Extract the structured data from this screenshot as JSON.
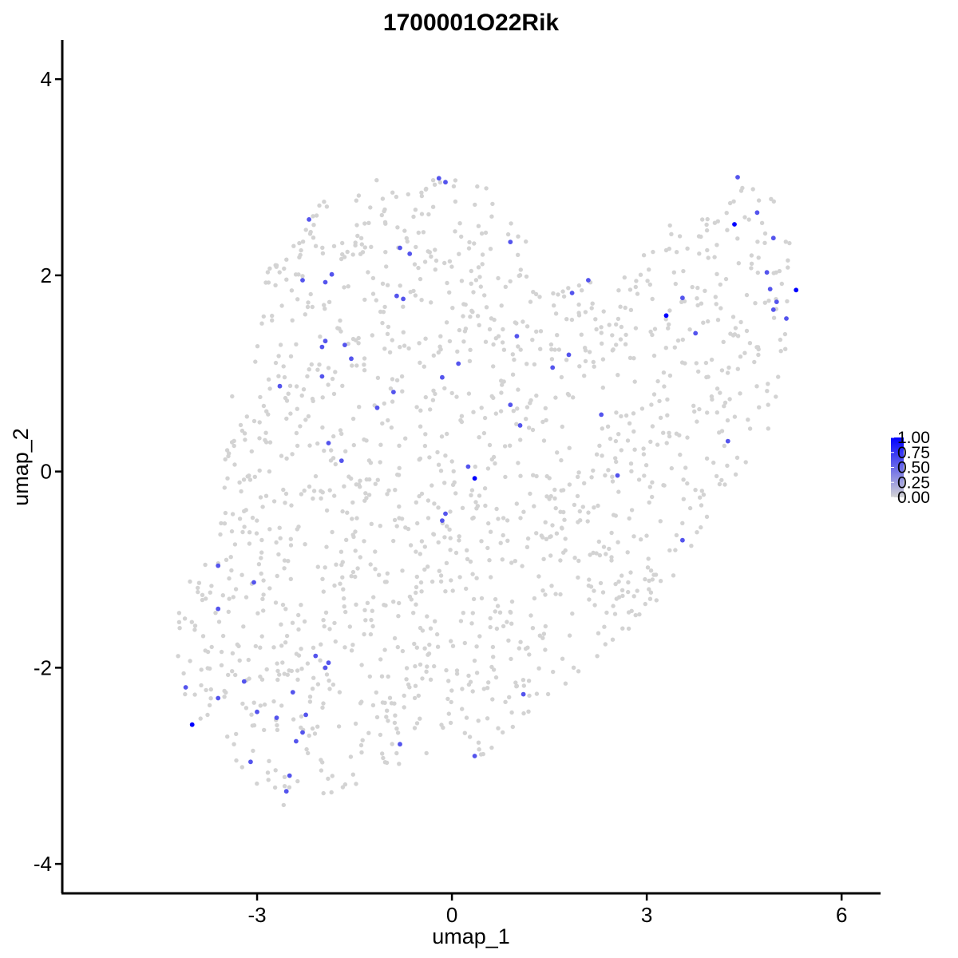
{
  "chart_data": {
    "type": "scatter",
    "title": "1700001O22Rik",
    "xlabel": "umap_1",
    "ylabel": "umap_2",
    "xlim": [
      -6,
      6.6
    ],
    "ylim": [
      -4.3,
      4.4
    ],
    "x_ticks": [
      -3,
      0,
      3,
      6
    ],
    "x_tick_labels": [
      "-3",
      "0",
      "3",
      "6"
    ],
    "y_ticks": [
      -4,
      -2,
      0,
      2,
      4
    ],
    "y_tick_labels": [
      "-4",
      "-2",
      "0",
      "2",
      "4"
    ],
    "grid": false,
    "legend": {
      "placement": "right",
      "type": "colorbar",
      "ticks": [
        1.0,
        0.75,
        0.5,
        0.25,
        0.0
      ],
      "tick_labels": [
        "1.00",
        "0.75",
        "0.50",
        "0.25",
        "0.00"
      ]
    },
    "colors": {
      "low": "#d3d3d3",
      "high": "#0000ff",
      "point_size_value": 0
    },
    "cluster_outline": [
      [
        -4.8,
        -1.3
      ],
      [
        -4.7,
        -1.1
      ],
      [
        -4.3,
        -1.5
      ],
      [
        -4.25,
        -1.9
      ],
      [
        -4.1,
        -2.3
      ],
      [
        -3.7,
        -2.8
      ],
      [
        -3.1,
        -3.2
      ],
      [
        -2.6,
        -3.4
      ],
      [
        -2.3,
        -3.5
      ],
      [
        -2.0,
        -3.3
      ],
      [
        -1.4,
        -3.2
      ],
      [
        -0.9,
        -3.0
      ],
      [
        -0.2,
        -3.0
      ],
      [
        0.5,
        -2.9
      ],
      [
        1.0,
        -2.6
      ],
      [
        1.6,
        -2.3
      ],
      [
        2.0,
        -2.0
      ],
      [
        2.4,
        -1.8
      ],
      [
        2.9,
        -1.5
      ],
      [
        3.3,
        -1.2
      ],
      [
        3.6,
        -0.9
      ],
      [
        4.1,
        -0.4
      ],
      [
        4.6,
        0.0
      ],
      [
        4.9,
        0.4
      ],
      [
        5.1,
        1.0
      ],
      [
        5.2,
        1.5
      ],
      [
        5.2,
        2.0
      ],
      [
        5.3,
        2.5
      ],
      [
        4.9,
        2.8
      ],
      [
        4.4,
        3.0
      ],
      [
        4.2,
        2.6
      ],
      [
        3.8,
        2.6
      ],
      [
        3.4,
        2.6
      ],
      [
        2.9,
        2.4
      ],
      [
        2.6,
        2.2
      ],
      [
        2.0,
        2.0
      ],
      [
        1.4,
        1.8
      ],
      [
        1.3,
        2.2
      ],
      [
        1.0,
        2.7
      ],
      [
        0.6,
        2.9
      ],
      [
        0.2,
        3.0
      ],
      [
        -0.3,
        3.1
      ],
      [
        -1.0,
        3.0
      ],
      [
        -1.6,
        2.9
      ],
      [
        -2.1,
        2.7
      ],
      [
        -2.3,
        2.4
      ],
      [
        -2.6,
        2.2
      ],
      [
        -3.0,
        2.0
      ],
      [
        -3.0,
        1.6
      ],
      [
        -3.2,
        1.2
      ],
      [
        -3.4,
        0.8
      ],
      [
        -3.5,
        0.3
      ],
      [
        -3.6,
        -0.2
      ],
      [
        -3.7,
        -0.7
      ],
      [
        -3.9,
        -1.0
      ],
      [
        -4.3,
        -1.2
      ]
    ],
    "background_cell_count": 1500,
    "expressing_cells": [
      {
        "x": -0.2,
        "y": 2.99,
        "v": 0.6
      },
      {
        "x": -0.1,
        "y": 2.95,
        "v": 0.6
      },
      {
        "x": -2.2,
        "y": 2.57,
        "v": 0.6
      },
      {
        "x": 0.9,
        "y": 2.34,
        "v": 0.6
      },
      {
        "x": -0.8,
        "y": 2.28,
        "v": 0.6
      },
      {
        "x": -0.65,
        "y": 2.22,
        "v": 0.6
      },
      {
        "x": -2.3,
        "y": 1.95,
        "v": 0.6
      },
      {
        "x": -1.95,
        "y": 1.93,
        "v": 0.6
      },
      {
        "x": -1.85,
        "y": 2.01,
        "v": 0.6
      },
      {
        "x": -0.85,
        "y": 1.79,
        "v": 0.6
      },
      {
        "x": -0.75,
        "y": 1.76,
        "v": 0.6
      },
      {
        "x": -1.95,
        "y": 1.33,
        "v": 0.6
      },
      {
        "x": -2.0,
        "y": 1.27,
        "v": 0.6
      },
      {
        "x": -1.65,
        "y": 1.29,
        "v": 0.6
      },
      {
        "x": -1.55,
        "y": 1.15,
        "v": 0.6
      },
      {
        "x": -2.0,
        "y": 0.97,
        "v": 0.6
      },
      {
        "x": -0.15,
        "y": 0.96,
        "v": 0.6
      },
      {
        "x": 0.1,
        "y": 1.1,
        "v": 0.6
      },
      {
        "x": -2.65,
        "y": 0.87,
        "v": 0.6
      },
      {
        "x": -0.9,
        "y": 0.81,
        "v": 0.6
      },
      {
        "x": -1.15,
        "y": 0.65,
        "v": 0.6
      },
      {
        "x": 0.9,
        "y": 0.68,
        "v": 0.6
      },
      {
        "x": 1.05,
        "y": 0.47,
        "v": 0.6
      },
      {
        "x": 1.0,
        "y": 1.38,
        "v": 0.6
      },
      {
        "x": 1.55,
        "y": 1.06,
        "v": 0.6
      },
      {
        "x": 1.8,
        "y": 1.19,
        "v": 0.6
      },
      {
        "x": 1.85,
        "y": 1.82,
        "v": 0.6
      },
      {
        "x": 2.1,
        "y": 1.95,
        "v": 0.6
      },
      {
        "x": 2.3,
        "y": 0.58,
        "v": 0.6
      },
      {
        "x": -1.9,
        "y": 0.29,
        "v": 0.6
      },
      {
        "x": -1.7,
        "y": 0.11,
        "v": 0.6
      },
      {
        "x": 0.25,
        "y": 0.05,
        "v": 0.6
      },
      {
        "x": 0.35,
        "y": -0.07,
        "v": 1.0
      },
      {
        "x": 2.55,
        "y": -0.04,
        "v": 0.6
      },
      {
        "x": -0.1,
        "y": -0.43,
        "v": 0.6
      },
      {
        "x": -0.15,
        "y": -0.5,
        "v": 0.6
      },
      {
        "x": 3.55,
        "y": -0.7,
        "v": 0.6
      },
      {
        "x": -3.6,
        "y": -0.96,
        "v": 0.6
      },
      {
        "x": -3.05,
        "y": -1.13,
        "v": 0.6
      },
      {
        "x": -3.6,
        "y": -1.4,
        "v": 0.6
      },
      {
        "x": -2.1,
        "y": -1.88,
        "v": 0.6
      },
      {
        "x": -1.9,
        "y": -1.95,
        "v": 0.6
      },
      {
        "x": -1.95,
        "y": -2.0,
        "v": 0.6
      },
      {
        "x": -3.2,
        "y": -2.14,
        "v": 0.6
      },
      {
        "x": -4.1,
        "y": -2.2,
        "v": 0.6
      },
      {
        "x": -3.6,
        "y": -2.31,
        "v": 0.6
      },
      {
        "x": -2.45,
        "y": -2.25,
        "v": 0.6
      },
      {
        "x": 1.1,
        "y": -2.27,
        "v": 0.6
      },
      {
        "x": -3.0,
        "y": -2.45,
        "v": 0.6
      },
      {
        "x": -2.7,
        "y": -2.51,
        "v": 0.6
      },
      {
        "x": -2.25,
        "y": -2.48,
        "v": 0.6
      },
      {
        "x": -4.0,
        "y": -2.58,
        "v": 1.0
      },
      {
        "x": -2.3,
        "y": -2.66,
        "v": 0.6
      },
      {
        "x": -2.4,
        "y": -2.75,
        "v": 0.6
      },
      {
        "x": -0.8,
        "y": -2.78,
        "v": 0.6
      },
      {
        "x": 0.35,
        "y": -2.9,
        "v": 0.6
      },
      {
        "x": -3.1,
        "y": -2.96,
        "v": 0.6
      },
      {
        "x": -2.5,
        "y": -3.1,
        "v": 0.6
      },
      {
        "x": -2.55,
        "y": -3.26,
        "v": 0.6
      },
      {
        "x": 4.4,
        "y": 3.0,
        "v": 0.6
      },
      {
        "x": 4.35,
        "y": 2.52,
        "v": 1.0
      },
      {
        "x": 4.7,
        "y": 2.64,
        "v": 0.6
      },
      {
        "x": 4.95,
        "y": 2.38,
        "v": 0.6
      },
      {
        "x": 4.85,
        "y": 2.03,
        "v": 0.6
      },
      {
        "x": 4.9,
        "y": 1.86,
        "v": 0.6
      },
      {
        "x": 5.0,
        "y": 1.73,
        "v": 0.6
      },
      {
        "x": 4.95,
        "y": 1.65,
        "v": 0.6
      },
      {
        "x": 5.15,
        "y": 1.56,
        "v": 0.6
      },
      {
        "x": 5.3,
        "y": 1.85,
        "v": 1.0
      },
      {
        "x": 3.3,
        "y": 1.59,
        "v": 1.0
      },
      {
        "x": 3.55,
        "y": 1.77,
        "v": 0.6
      },
      {
        "x": 3.75,
        "y": 1.41,
        "v": 0.6
      },
      {
        "x": 4.25,
        "y": 0.31,
        "v": 0.6
      }
    ]
  }
}
